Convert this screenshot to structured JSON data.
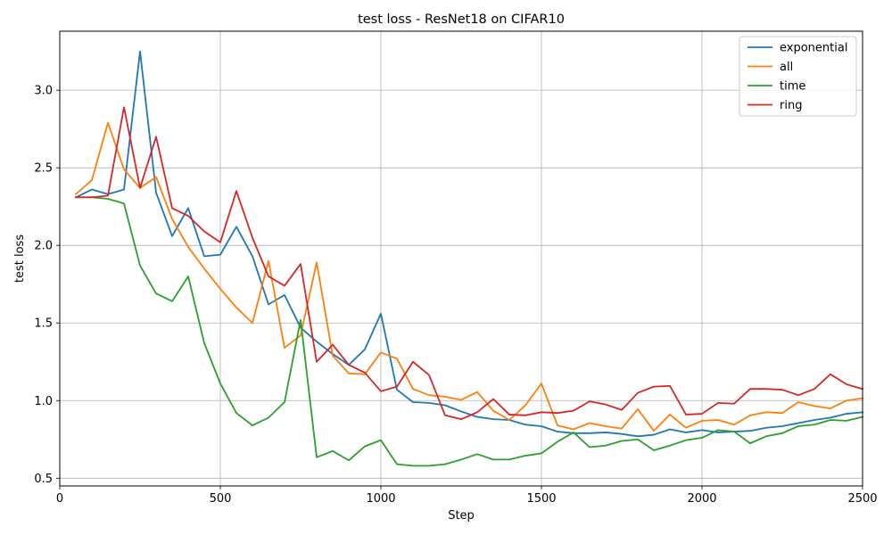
{
  "chart_data": {
    "type": "line",
    "title": "test loss - ResNet18 on CIFAR10",
    "xlabel": "Step",
    "ylabel": "test loss",
    "xlim": [
      0,
      2500
    ],
    "ylim": [
      0.45,
      3.38
    ],
    "xticks": [
      0,
      500,
      1000,
      1500,
      2000,
      2500
    ],
    "xtick_labels": [
      "0",
      "500",
      "1000",
      "1500",
      "2000",
      "2500"
    ],
    "yticks": [
      0.5,
      1.0,
      1.5,
      2.0,
      2.5,
      3.0
    ],
    "ytick_labels": [
      "0.5",
      "1.0",
      "1.5",
      "2.0",
      "2.5",
      "3.0"
    ],
    "grid": true,
    "legend_position": "top-right",
    "series": [
      {
        "name": "exponential",
        "color": "#1f77b4",
        "x": [
          50,
          100,
          150,
          200,
          250,
          300,
          350,
          400,
          450,
          500,
          550,
          600,
          650,
          700,
          750,
          800,
          850,
          900,
          950,
          1000,
          1050,
          1100,
          1150,
          1200,
          1250,
          1300,
          1350,
          1400,
          1450,
          1500,
          1550,
          1600,
          1650,
          1700,
          1750,
          1800,
          1850,
          1900,
          1950,
          2000,
          2050,
          2100,
          2150,
          2200,
          2250,
          2300,
          2350,
          2400,
          2450,
          2500
        ],
        "values": [
          2.31,
          2.36,
          2.33,
          2.36,
          3.25,
          2.34,
          2.06,
          2.24,
          1.93,
          1.94,
          2.12,
          1.93,
          1.62,
          1.68,
          1.47,
          1.38,
          1.3,
          1.23,
          1.33,
          1.56,
          1.07,
          0.99,
          0.985,
          0.97,
          0.93,
          0.895,
          0.88,
          0.875,
          0.845,
          0.835,
          0.8,
          0.79,
          0.79,
          0.795,
          0.785,
          0.77,
          0.78,
          0.815,
          0.795,
          0.81,
          0.795,
          0.8,
          0.805,
          0.825,
          0.835,
          0.855,
          0.875,
          0.89,
          0.915,
          0.925
        ]
      },
      {
        "name": "all",
        "color": "#ff7f0e",
        "x": [
          50,
          100,
          150,
          200,
          250,
          300,
          350,
          400,
          450,
          500,
          550,
          600,
          650,
          700,
          750,
          800,
          850,
          900,
          950,
          1000,
          1050,
          1100,
          1150,
          1200,
          1250,
          1300,
          1350,
          1400,
          1450,
          1500,
          1550,
          1600,
          1650,
          1700,
          1750,
          1800,
          1850,
          1900,
          1950,
          2000,
          2050,
          2100,
          2150,
          2200,
          2250,
          2300,
          2350,
          2400,
          2450,
          2500
        ],
        "values": [
          2.33,
          2.42,
          2.79,
          2.49,
          2.37,
          2.44,
          2.17,
          1.99,
          1.85,
          1.72,
          1.6,
          1.5,
          1.9,
          1.34,
          1.42,
          1.89,
          1.29,
          1.175,
          1.17,
          1.31,
          1.27,
          1.075,
          1.035,
          1.025,
          1.005,
          1.055,
          0.935,
          0.875,
          0.97,
          1.11,
          0.84,
          0.815,
          0.855,
          0.835,
          0.82,
          0.945,
          0.805,
          0.91,
          0.825,
          0.87,
          0.875,
          0.845,
          0.905,
          0.925,
          0.92,
          0.99,
          0.965,
          0.95,
          1.0,
          1.015
        ]
      },
      {
        "name": "time",
        "color": "#2ca02c",
        "x": [
          50,
          100,
          150,
          200,
          250,
          300,
          350,
          400,
          450,
          500,
          550,
          600,
          650,
          700,
          750,
          800,
          850,
          900,
          950,
          1000,
          1050,
          1100,
          1150,
          1200,
          1250,
          1300,
          1350,
          1400,
          1450,
          1500,
          1550,
          1600,
          1650,
          1700,
          1750,
          1800,
          1850,
          1900,
          1950,
          2000,
          2050,
          2100,
          2150,
          2200,
          2250,
          2300,
          2350,
          2400,
          2450,
          2500
        ],
        "values": [
          2.31,
          2.31,
          2.3,
          2.27,
          1.87,
          1.69,
          1.64,
          1.8,
          1.37,
          1.11,
          0.92,
          0.84,
          0.89,
          0.99,
          1.52,
          0.635,
          0.675,
          0.615,
          0.705,
          0.745,
          0.59,
          0.58,
          0.58,
          0.59,
          0.62,
          0.655,
          0.62,
          0.62,
          0.645,
          0.66,
          0.735,
          0.795,
          0.7,
          0.71,
          0.74,
          0.75,
          0.68,
          0.71,
          0.745,
          0.76,
          0.81,
          0.8,
          0.725,
          0.77,
          0.79,
          0.835,
          0.845,
          0.875,
          0.87,
          0.895
        ]
      },
      {
        "name": "ring",
        "color": "#d62728",
        "x": [
          50,
          100,
          150,
          200,
          250,
          300,
          350,
          400,
          450,
          500,
          550,
          600,
          650,
          700,
          750,
          800,
          850,
          900,
          950,
          1000,
          1050,
          1100,
          1150,
          1200,
          1250,
          1300,
          1350,
          1400,
          1450,
          1500,
          1550,
          1600,
          1650,
          1700,
          1750,
          1800,
          1850,
          1900,
          1950,
          2000,
          2050,
          2100,
          2150,
          2200,
          2250,
          2300,
          2350,
          2400,
          2450,
          2500
        ],
        "values": [
          2.31,
          2.31,
          2.32,
          2.89,
          2.37,
          2.7,
          2.24,
          2.19,
          2.09,
          2.02,
          2.35,
          2.05,
          1.8,
          1.74,
          1.88,
          1.25,
          1.36,
          1.23,
          1.18,
          1.06,
          1.09,
          1.25,
          1.165,
          0.905,
          0.88,
          0.925,
          1.01,
          0.91,
          0.905,
          0.925,
          0.92,
          0.935,
          0.995,
          0.975,
          0.94,
          1.05,
          1.09,
          1.095,
          0.91,
          0.915,
          0.985,
          0.98,
          1.075,
          1.075,
          1.07,
          1.035,
          1.075,
          1.17,
          1.105,
          1.075
        ]
      }
    ]
  }
}
